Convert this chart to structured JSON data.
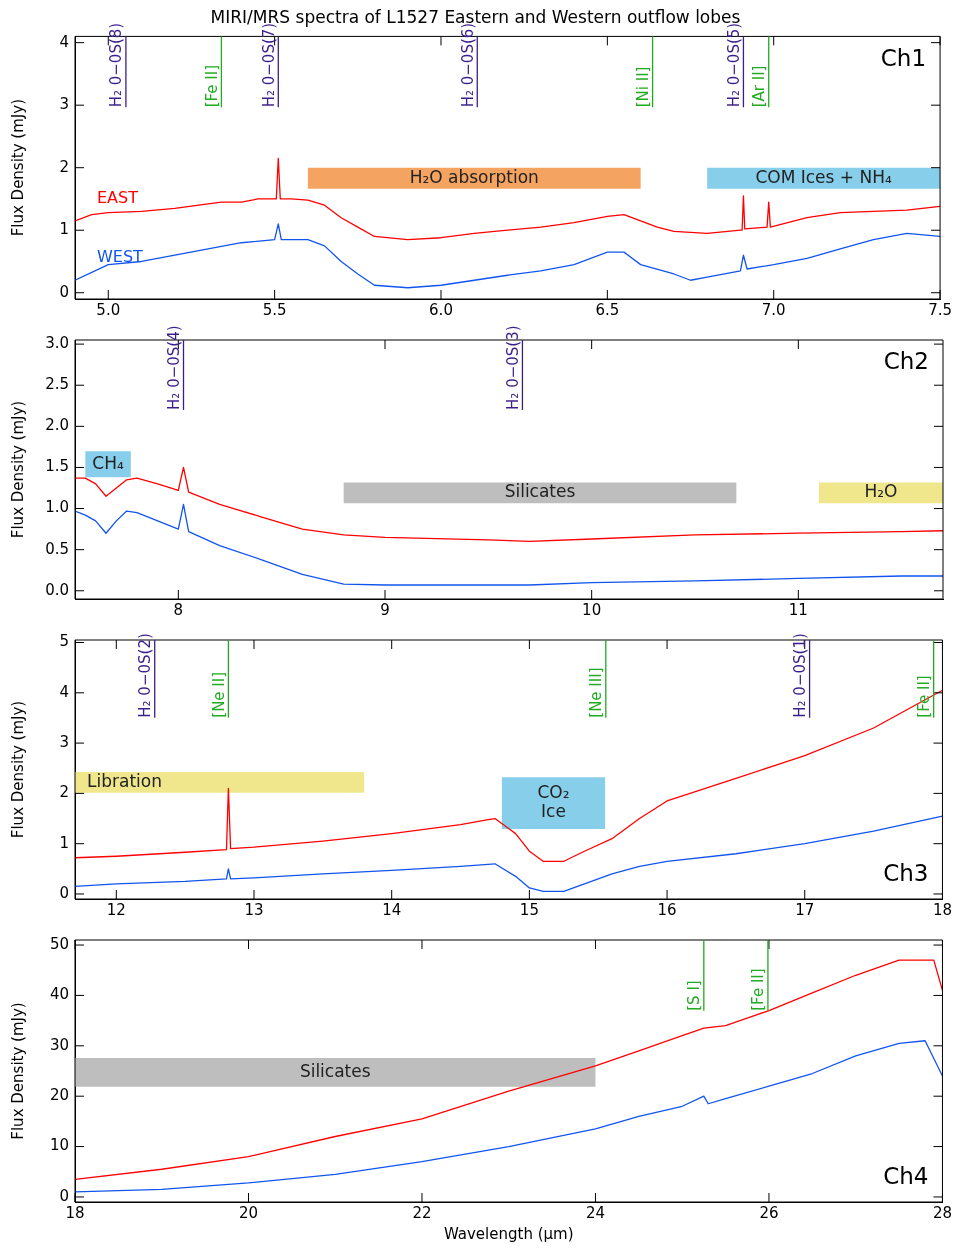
{
  "chart_data": [
    {
      "type": "line",
      "title": "MIRI/MRS spectra of L1527 Eastern and Western outflow lobes",
      "ylabel": "Flux Density (mJy)",
      "xlim": [
        4.9,
        7.5
      ],
      "xticks": [
        {
          "value": 5,
          "label": "5.0"
        },
        5.5,
        {
          "value": 6,
          "label": "6.0"
        },
        6.5,
        {
          "value": 7,
          "label": "7.0"
        },
        7.5
      ],
      "ylim": [
        -0.1,
        4.1
      ],
      "yticks": [
        0,
        1,
        2,
        3,
        4
      ],
      "series": [
        {
          "name": "EAST",
          "color": "#ff0000",
          "x": [
            4.9,
            4.95,
            5.0,
            5.1,
            5.2,
            5.3,
            5.34,
            5.4,
            5.45,
            5.5,
            5.505,
            5.511,
            5.517,
            5.55,
            5.6,
            5.65,
            5.7,
            5.75,
            5.8,
            5.9,
            6.0,
            6.1,
            6.2,
            6.3,
            6.4,
            6.5,
            6.55,
            6.6,
            6.65,
            6.7,
            6.8,
            6.9,
            6.905,
            6.909,
            6.913,
            6.98,
            6.985,
            6.99,
            7.1,
            7.2,
            7.3,
            7.4,
            7.5
          ],
          "values": [
            1.15,
            1.25,
            1.28,
            1.3,
            1.35,
            1.42,
            1.45,
            1.45,
            1.5,
            1.5,
            1.5,
            2.15,
            1.5,
            1.5,
            1.48,
            1.4,
            1.2,
            1.05,
            0.9,
            0.85,
            0.88,
            0.95,
            1.0,
            1.05,
            1.12,
            1.22,
            1.25,
            1.15,
            1.05,
            0.98,
            0.95,
            1.0,
            1.0,
            1.55,
            1.02,
            1.05,
            1.45,
            1.05,
            1.2,
            1.28,
            1.3,
            1.32,
            1.38
          ]
        },
        {
          "name": "WEST",
          "color": "#1155ee",
          "x": [
            4.9,
            5.0,
            5.1,
            5.2,
            5.3,
            5.4,
            5.5,
            5.511,
            5.52,
            5.6,
            5.65,
            5.7,
            5.75,
            5.8,
            5.9,
            6.0,
            6.1,
            6.2,
            6.3,
            6.4,
            6.5,
            6.55,
            6.6,
            6.7,
            6.75,
            6.8,
            6.9,
            6.909,
            6.92,
            7.0,
            7.1,
            7.2,
            7.3,
            7.4,
            7.5
          ],
          "values": [
            0.2,
            0.45,
            0.5,
            0.6,
            0.7,
            0.8,
            0.85,
            1.1,
            0.85,
            0.85,
            0.75,
            0.5,
            0.3,
            0.12,
            0.08,
            0.12,
            0.2,
            0.28,
            0.35,
            0.45,
            0.65,
            0.65,
            0.45,
            0.3,
            0.2,
            0.25,
            0.35,
            0.6,
            0.38,
            0.45,
            0.55,
            0.7,
            0.85,
            0.95,
            0.9
          ]
        }
      ],
      "ref_lines": [
        {
          "axis": "x",
          "value": 5.053,
          "label": "H₂ 0−0S(8)",
          "color": "#3b1e8c"
        },
        {
          "axis": "x",
          "value": 5.34,
          "label": "[Fe II]",
          "color": "#22aa22"
        },
        {
          "axis": "x",
          "value": 5.511,
          "label": "H₂ 0−0S(7)",
          "color": "#3b1e8c"
        },
        {
          "axis": "x",
          "value": 6.109,
          "label": "H₂ 0−0S(6)",
          "color": "#3b1e8c"
        },
        {
          "axis": "x",
          "value": 6.636,
          "label": "[Ni II]",
          "color": "#22aa22"
        },
        {
          "axis": "x",
          "value": 6.909,
          "label": "H₂ 0−0S(5)",
          "color": "#3b1e8c"
        },
        {
          "axis": "x",
          "value": 6.985,
          "label": "[Ar II]",
          "color": "#22aa22"
        }
      ],
      "bands": [
        {
          "axis": "x",
          "from": 5.6,
          "to": 6.6,
          "label": "H₂O absorption",
          "color": "#f4a460"
        },
        {
          "axis": "x",
          "from": 6.8,
          "to": 7.5,
          "label": "COM Ices + NH₄",
          "color": "#87ceeb"
        }
      ],
      "annotations": [
        "Ch1"
      ]
    },
    {
      "type": "line",
      "ylabel": "Flux Density (mJy)",
      "xlim": [
        7.5,
        11.7
      ],
      "xticks": [
        8,
        9,
        10,
        11
      ],
      "ylim": [
        -0.1,
        3.05
      ],
      "yticks": [
        {
          "value": 0,
          "label": "0.0"
        },
        0.5,
        {
          "value": 1,
          "label": "1.0"
        },
        1.5,
        {
          "value": 2,
          "label": "2.0"
        },
        2.5,
        {
          "value": 3,
          "label": "3.0"
        }
      ],
      "series": [
        {
          "color": "#ff0000",
          "x": [
            7.5,
            7.55,
            7.6,
            7.65,
            7.7,
            7.75,
            7.8,
            7.9,
            8.0,
            8.025,
            8.05,
            8.2,
            8.4,
            8.6,
            8.8,
            9.0,
            9.5,
            9.7,
            10.0,
            10.5,
            11.0,
            11.5,
            11.7
          ],
          "values": [
            1.37,
            1.37,
            1.3,
            1.15,
            1.25,
            1.35,
            1.37,
            1.3,
            1.22,
            1.5,
            1.2,
            1.05,
            0.9,
            0.75,
            0.68,
            0.65,
            0.62,
            0.6,
            0.63,
            0.68,
            0.7,
            0.72,
            0.73
          ]
        },
        {
          "color": "#1155ee",
          "x": [
            7.5,
            7.55,
            7.6,
            7.65,
            7.7,
            7.75,
            7.8,
            7.9,
            8.0,
            8.025,
            8.05,
            8.2,
            8.4,
            8.6,
            8.8,
            9.0,
            9.5,
            9.7,
            10.0,
            10.5,
            11.0,
            11.5,
            11.7
          ],
          "values": [
            0.97,
            0.92,
            0.85,
            0.7,
            0.85,
            0.97,
            0.95,
            0.85,
            0.75,
            1.05,
            0.72,
            0.55,
            0.38,
            0.2,
            0.08,
            0.07,
            0.07,
            0.07,
            0.1,
            0.12,
            0.15,
            0.18,
            0.18
          ]
        }
      ],
      "ref_lines": [
        {
          "axis": "x",
          "value": 8.025,
          "label": "H₂ 0−0S(4)",
          "color": "#3b1e8c"
        },
        {
          "axis": "x",
          "value": 9.665,
          "label": "H₂ 0−0S(3)",
          "color": "#3b1e8c"
        }
      ],
      "bands": [
        {
          "axis": "x",
          "from": 7.55,
          "to": 7.77,
          "label": "CH₄",
          "color": "#87ceeb"
        },
        {
          "axis": "x",
          "from": 8.8,
          "to": 10.7,
          "label": "Silicates",
          "color": "#bebebe"
        },
        {
          "axis": "x",
          "from": 11.1,
          "to": 11.7,
          "label": "H₂O",
          "color": "#f0e68c"
        }
      ],
      "annotations": [
        "Ch2"
      ]
    },
    {
      "type": "line",
      "ylabel": "Flux Density (mJy)",
      "xlim": [
        11.7,
        18
      ],
      "xticks": [
        12,
        13,
        14,
        15,
        16,
        17,
        18
      ],
      "ylim": [
        -0.1,
        5.05
      ],
      "yticks": [
        0,
        1,
        2,
        3,
        4,
        5
      ],
      "series": [
        {
          "color": "#ff0000",
          "x": [
            11.7,
            12.0,
            12.5,
            12.8,
            12.814,
            12.83,
            13.0,
            13.5,
            14.0,
            14.5,
            14.7,
            14.75,
            14.9,
            15.0,
            15.1,
            15.25,
            15.4,
            15.6,
            15.8,
            16.0,
            16.5,
            17.0,
            17.5,
            18.0
          ],
          "values": [
            0.72,
            0.75,
            0.83,
            0.88,
            2.1,
            0.9,
            0.93,
            1.05,
            1.2,
            1.38,
            1.48,
            1.5,
            1.2,
            0.85,
            0.65,
            0.65,
            0.85,
            1.1,
            1.5,
            1.85,
            2.3,
            2.75,
            3.3,
            4.05
          ]
        },
        {
          "color": "#1155ee",
          "x": [
            11.7,
            12.0,
            12.5,
            12.8,
            12.814,
            12.83,
            13.0,
            13.5,
            14.0,
            14.5,
            14.75,
            14.9,
            15.0,
            15.1,
            15.25,
            15.4,
            15.6,
            15.8,
            16.0,
            16.5,
            17.0,
            17.5,
            18.0
          ],
          "values": [
            0.15,
            0.2,
            0.25,
            0.3,
            0.5,
            0.3,
            0.32,
            0.4,
            0.47,
            0.55,
            0.6,
            0.35,
            0.12,
            0.05,
            0.05,
            0.2,
            0.4,
            0.55,
            0.65,
            0.8,
            1.0,
            1.25,
            1.55
          ]
        }
      ],
      "ref_lines": [
        {
          "axis": "x",
          "value": 12.279,
          "label": "H₂ 0−0S(2)",
          "color": "#3b1e8c"
        },
        {
          "axis": "x",
          "value": 12.814,
          "label": "[Ne II]",
          "color": "#22aa22"
        },
        {
          "axis": "x",
          "value": 15.555,
          "label": "[Ne III]",
          "color": "#22aa22"
        },
        {
          "axis": "x",
          "value": 17.035,
          "label": "H₂ 0−0S(1)",
          "color": "#3b1e8c"
        },
        {
          "axis": "x",
          "value": 17.936,
          "label": "[Fe II]",
          "color": "#22aa22"
        }
      ],
      "bands": [
        {
          "axis": "x",
          "from": 11.7,
          "to": 13.8,
          "label": "Libration",
          "color": "#f0e68c"
        },
        {
          "axis": "x",
          "from": 14.8,
          "to": 15.55,
          "label": "CO₂ Ice",
          "color": "#87ceeb"
        }
      ],
      "annotations": [
        "Ch3"
      ]
    },
    {
      "type": "line",
      "xlabel": "Wavelength (μm)",
      "ylabel": "Flux Density (mJy)",
      "xlim": [
        18,
        28
      ],
      "xticks": [
        18,
        20,
        22,
        24,
        26,
        28
      ],
      "ylim": [
        -1,
        51
      ],
      "yticks": [
        0,
        10,
        20,
        30,
        40,
        50
      ],
      "series": [
        {
          "color": "#ff0000",
          "x": [
            18,
            19,
            20,
            21,
            22,
            23,
            24,
            24.5,
            25,
            25.25,
            25.5,
            26,
            26.5,
            27,
            27.5,
            27.9,
            28
          ],
          "values": [
            3.5,
            5.5,
            8,
            12,
            15.5,
            21,
            26,
            29,
            32,
            33.5,
            34,
            37,
            40.5,
            44,
            47,
            47,
            41
          ]
        },
        {
          "color": "#1155ee",
          "x": [
            18,
            19,
            20,
            21,
            22,
            23,
            24,
            24.5,
            25,
            25.249,
            25.3,
            25.5,
            26,
            26.5,
            27,
            27.5,
            27.8,
            28
          ],
          "values": [
            1,
            1.5,
            2.8,
            4.5,
            7,
            10,
            13.5,
            16,
            18,
            20,
            18.5,
            19.5,
            22,
            24.5,
            28,
            30.5,
            31,
            24
          ]
        }
      ],
      "ref_lines": [
        {
          "axis": "x",
          "value": 25.249,
          "label": "[S I]",
          "color": "#22aa22"
        },
        {
          "axis": "x",
          "value": 25.988,
          "label": "[Fe II]",
          "color": "#22aa22"
        }
      ],
      "bands": [
        {
          "axis": "x",
          "from": 18,
          "to": 24,
          "label": "Silicates",
          "color": "#bebebe"
        }
      ],
      "annotations": [
        "Ch4"
      ]
    }
  ]
}
